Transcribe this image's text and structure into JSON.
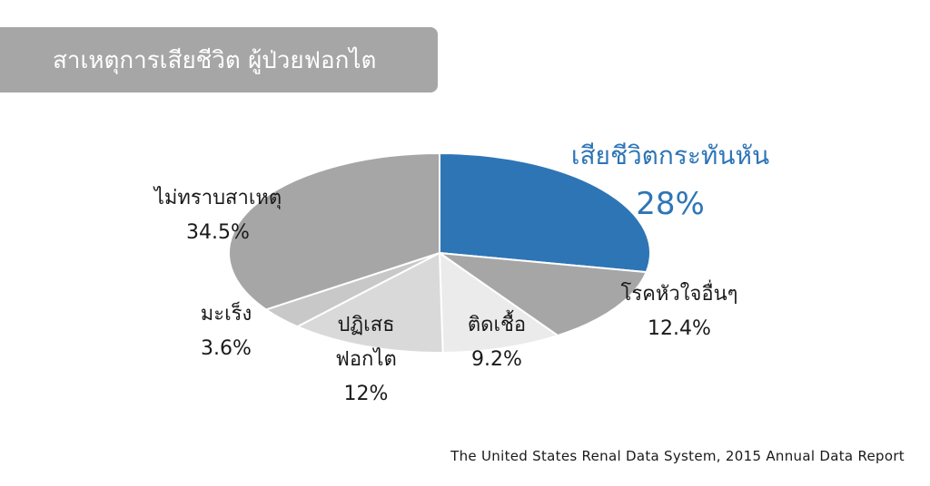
{
  "title": "สาเหตุการเสียชีวิต ผู้ป่วยฟอกไต",
  "source": "The United States Renal Data System, 2015 Annual Data Report",
  "colors": {
    "highlight": "#2e75b6",
    "slice_dark": "#a6a6a6",
    "slice_mid": "#c8c8c8",
    "slice_light": "#d9d9d9",
    "slice_lighter": "#ebebeb",
    "banner": "#a6a6a6"
  },
  "chart_data": {
    "type": "pie",
    "title": "สาเหตุการเสียชีวิต ผู้ป่วยฟอกไต",
    "slices": [
      {
        "label": "เสียชีวิตกระทันหัน",
        "value": 28,
        "display": "28%",
        "color": "#2e75b6"
      },
      {
        "label": "โรคหัวใจอื่นๆ",
        "value": 12.4,
        "display": "12.4%",
        "color": "#a6a6a6"
      },
      {
        "label": "ติดเชื้อ",
        "value": 9.2,
        "display": "9.2%",
        "color": "#ebebeb"
      },
      {
        "label": "ปฏิเสธ\nฟอกไต",
        "value": 12,
        "display": "12%",
        "color": "#d9d9d9"
      },
      {
        "label": "มะเร็ง",
        "value": 3.6,
        "display": "3.6%",
        "color": "#c8c8c8"
      },
      {
        "label": "ไม่ทราบสาเหตุ",
        "value": 34.5,
        "display": "34.5%",
        "color": "#a6a6a6"
      }
    ]
  }
}
